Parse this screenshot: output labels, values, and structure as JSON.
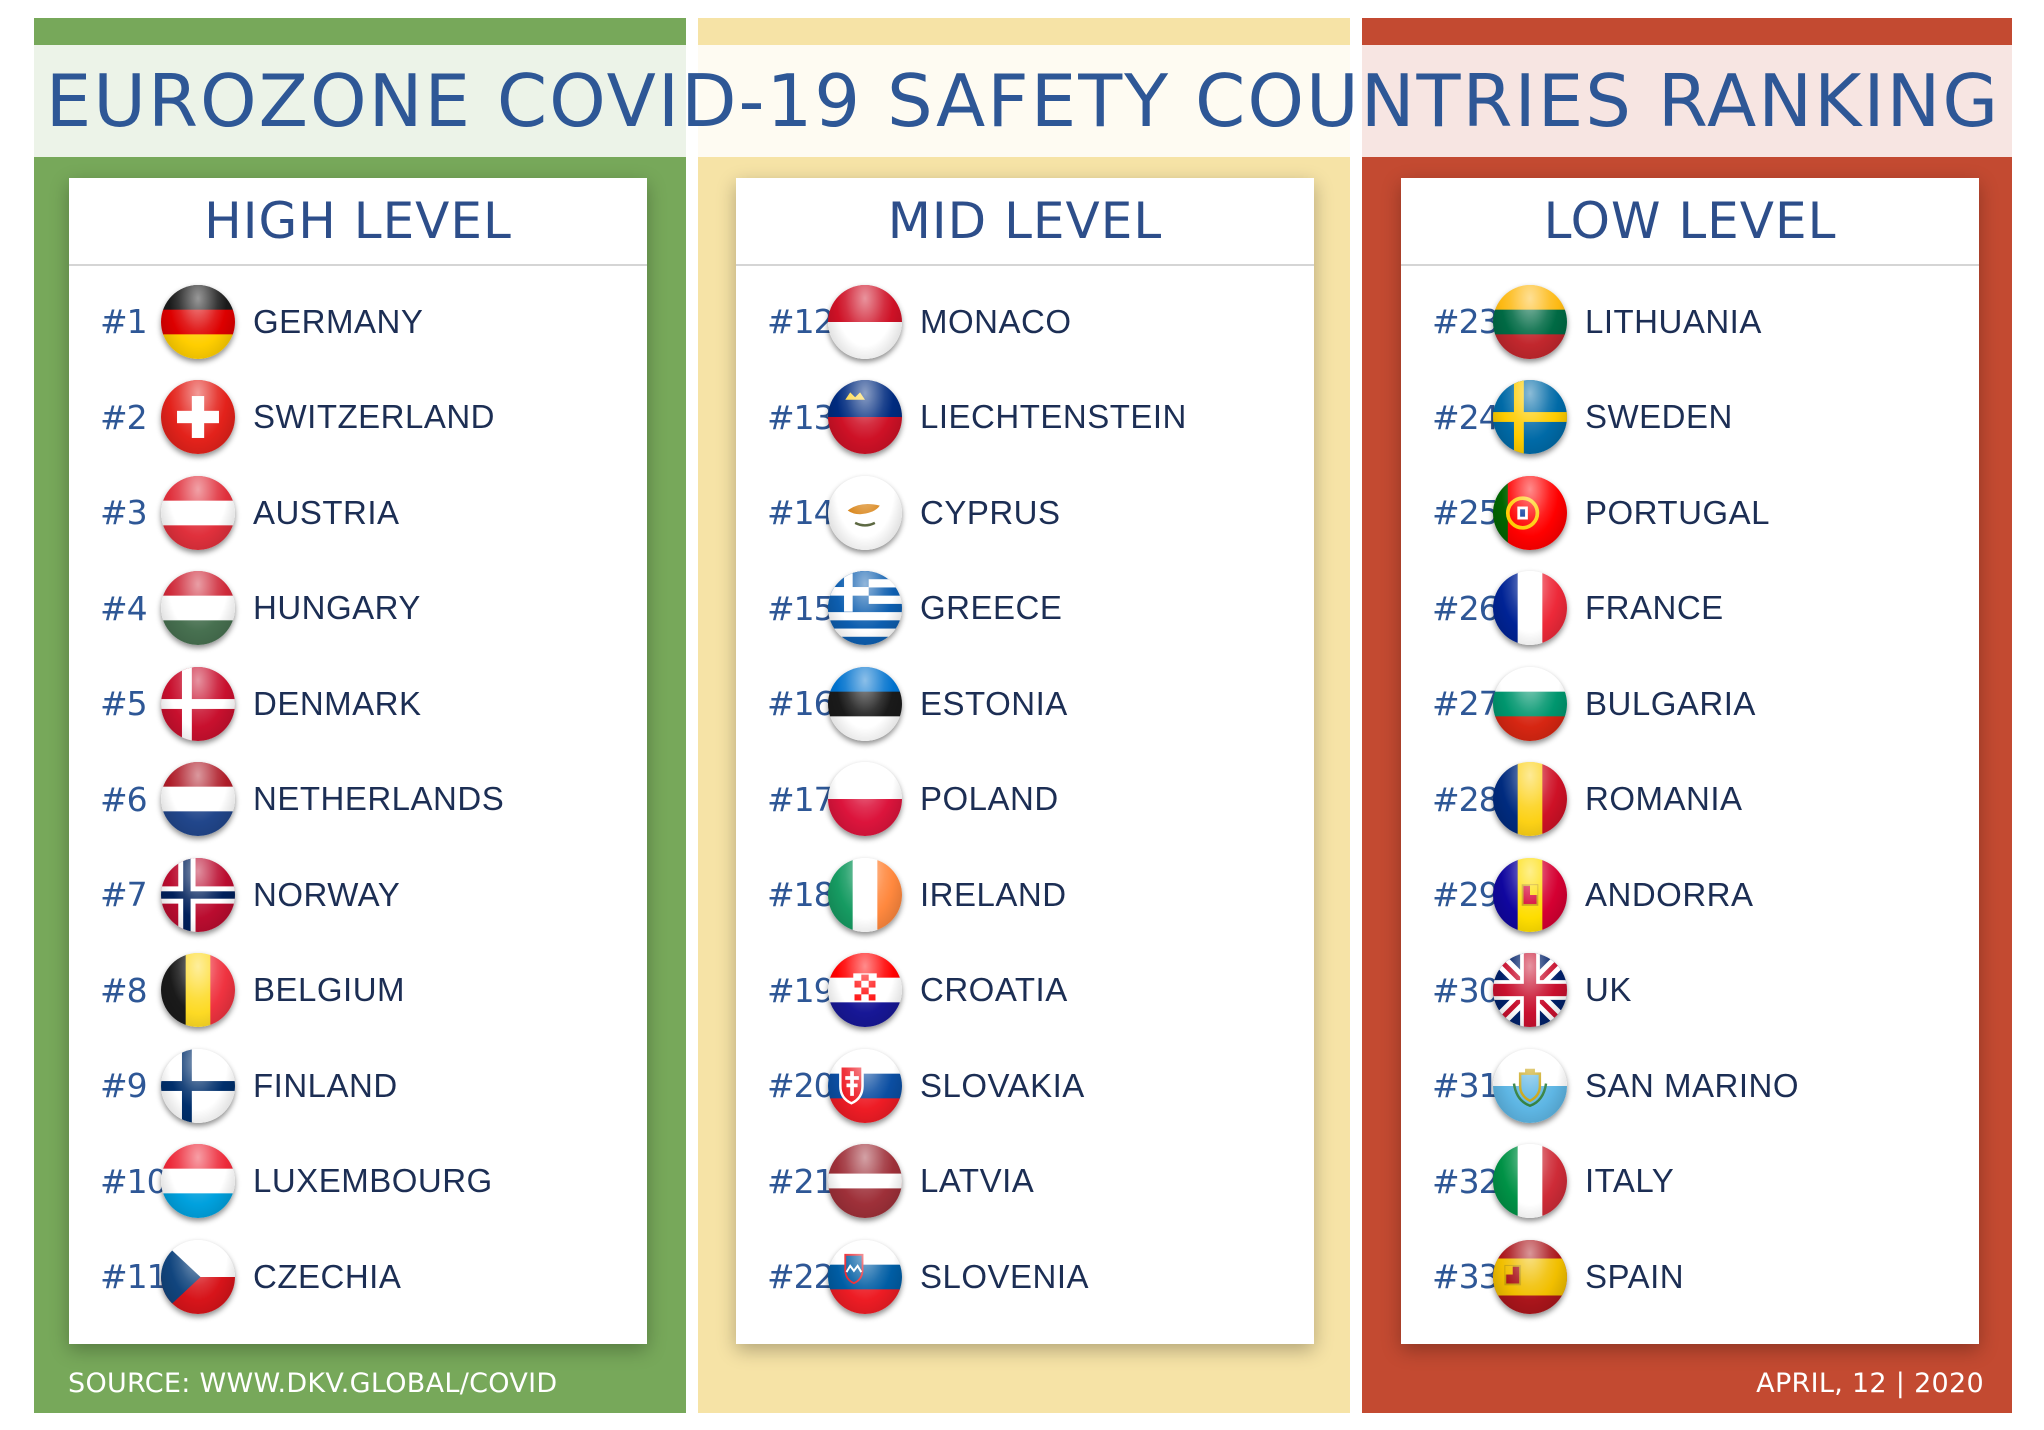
{
  "title": "EUROZONE COVID-19 SAFETY COUNTRIES RANKING",
  "columns": [
    {
      "heading": "HIGH LEVEL",
      "color": "#77a85a",
      "entries": [
        {
          "rank": "#1",
          "name": "GERMANY",
          "flag": "germany-flag-icon"
        },
        {
          "rank": "#2",
          "name": "SWITZERLAND",
          "flag": "switzerland-flag-icon"
        },
        {
          "rank": "#3",
          "name": "AUSTRIA",
          "flag": "austria-flag-icon"
        },
        {
          "rank": "#4",
          "name": "HUNGARY",
          "flag": "hungary-flag-icon"
        },
        {
          "rank": "#5",
          "name": "DENMARK",
          "flag": "denmark-flag-icon"
        },
        {
          "rank": "#6",
          "name": "NETHERLANDS",
          "flag": "netherlands-flag-icon"
        },
        {
          "rank": "#7",
          "name": "NORWAY",
          "flag": "norway-flag-icon"
        },
        {
          "rank": "#8",
          "name": "BELGIUM",
          "flag": "belgium-flag-icon"
        },
        {
          "rank": "#9",
          "name": "FINLAND",
          "flag": "finland-flag-icon"
        },
        {
          "rank": "#10",
          "name": "LUXEMBOURG",
          "flag": "luxembourg-flag-icon"
        },
        {
          "rank": "#11",
          "name": "CZECHIA",
          "flag": "czechia-flag-icon"
        }
      ]
    },
    {
      "heading": "MID LEVEL",
      "color": "#f6e3a6",
      "entries": [
        {
          "rank": "#12",
          "name": "MONACO",
          "flag": "monaco-flag-icon"
        },
        {
          "rank": "#13",
          "name": "LIECHTENSTEIN",
          "flag": "liechtenstein-flag-icon"
        },
        {
          "rank": "#14",
          "name": "CYPRUS",
          "flag": "cyprus-flag-icon"
        },
        {
          "rank": "#15",
          "name": "GREECE",
          "flag": "greece-flag-icon"
        },
        {
          "rank": "#16",
          "name": "ESTONIA",
          "flag": "estonia-flag-icon"
        },
        {
          "rank": "#17",
          "name": "POLAND",
          "flag": "poland-flag-icon"
        },
        {
          "rank": "#18",
          "name": "IRELAND",
          "flag": "ireland-flag-icon"
        },
        {
          "rank": "#19",
          "name": "CROATIA",
          "flag": "croatia-flag-icon"
        },
        {
          "rank": "#20",
          "name": "SLOVAKIA",
          "flag": "slovakia-flag-icon"
        },
        {
          "rank": "#21",
          "name": "LATVIA",
          "flag": "latvia-flag-icon"
        },
        {
          "rank": "#22",
          "name": "SLOVENIA",
          "flag": "slovenia-flag-icon"
        }
      ]
    },
    {
      "heading": "LOW LEVEL",
      "color": "#c34a31",
      "entries": [
        {
          "rank": "#23",
          "name": "LITHUANIA",
          "flag": "lithuania-flag-icon"
        },
        {
          "rank": "#24",
          "name": "SWEDEN",
          "flag": "sweden-flag-icon"
        },
        {
          "rank": "#25",
          "name": "PORTUGAL",
          "flag": "portugal-flag-icon"
        },
        {
          "rank": "#26",
          "name": "FRANCE",
          "flag": "france-flag-icon"
        },
        {
          "rank": "#27",
          "name": "BULGARIA",
          "flag": "bulgaria-flag-icon"
        },
        {
          "rank": "#28",
          "name": "ROMANIA",
          "flag": "romania-flag-icon"
        },
        {
          "rank": "#29",
          "name": "ANDORRA",
          "flag": "andorra-flag-icon"
        },
        {
          "rank": "#30",
          "name": "UK",
          "flag": "uk-flag-icon"
        },
        {
          "rank": "#31",
          "name": "SAN MARINO",
          "flag": "san-marino-flag-icon"
        },
        {
          "rank": "#32",
          "name": "ITALY",
          "flag": "italy-flag-icon"
        },
        {
          "rank": "#33",
          "name": "SPAIN",
          "flag": "spain-flag-icon"
        }
      ]
    }
  ],
  "footer": {
    "source": "SOURCE: WWW.DKV.GLOBAL/COVID",
    "date": "APRIL, 12 | 2020"
  }
}
